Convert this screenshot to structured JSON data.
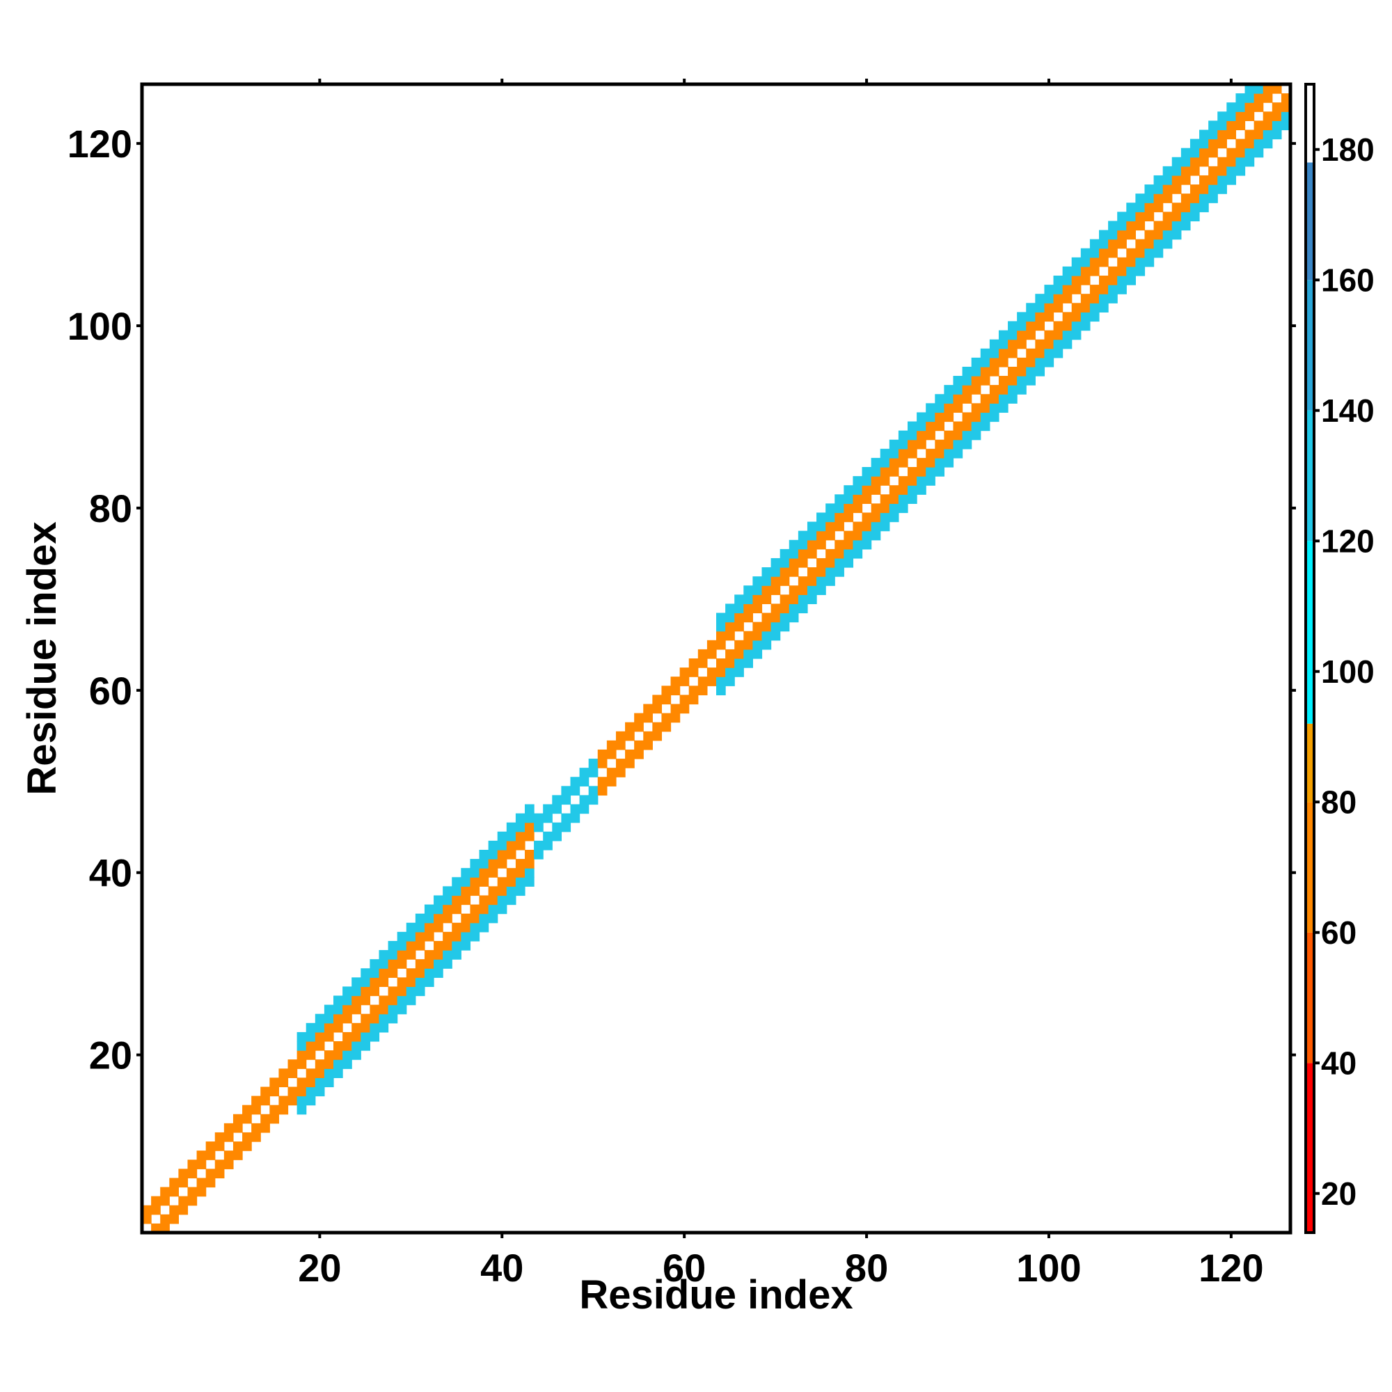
{
  "chart_data": {
    "type": "heatmap",
    "title": "",
    "xlabel": "Residue index",
    "ylabel": "Residue index",
    "xlim": [
      1,
      126
    ],
    "ylim": [
      1,
      126
    ],
    "x_ticks": [
      20,
      40,
      60,
      80,
      100,
      120
    ],
    "y_ticks": [
      20,
      40,
      60,
      80,
      100,
      120
    ],
    "grid": false,
    "diagonal_value": 0,
    "colorbar": {
      "range": [
        14,
        190
      ],
      "ticks": [
        20,
        40,
        60,
        80,
        100,
        120,
        140,
        160,
        180
      ],
      "bands": [
        {
          "from": 14,
          "to": 40,
          "color": "#ff0000"
        },
        {
          "from": 40,
          "to": 60,
          "color": "#ff5a00"
        },
        {
          "from": 60,
          "to": 80,
          "color": "#ff8800"
        },
        {
          "from": 80,
          "to": 92,
          "color": "#f5a000"
        },
        {
          "from": 92,
          "to": 120,
          "color": "#00f0ff"
        },
        {
          "from": 120,
          "to": 140,
          "color": "#22c8e8"
        },
        {
          "from": 140,
          "to": 160,
          "color": "#2aa6d8"
        },
        {
          "from": 160,
          "to": 178,
          "color": "#3a86c6"
        },
        {
          "from": 178,
          "to": 190,
          "color": "#ffffff"
        }
      ]
    },
    "segments": [
      {
        "from": 1,
        "to": 17,
        "halfwidth": 2,
        "values": [
          30,
          60,
          100
        ]
      },
      {
        "from": 17,
        "to": 43,
        "halfwidth": 4,
        "values": [
          35,
          65,
          100,
          130
        ]
      },
      {
        "from": 43,
        "to": 50,
        "halfwidth": 2,
        "values": [
          40,
          130
        ]
      },
      {
        "from": 50,
        "to": 63,
        "halfwidth": 2,
        "values": [
          35,
          60
        ]
      },
      {
        "from": 63,
        "to": 126,
        "halfwidth": 4,
        "values": [
          30,
          60,
          100,
          130
        ]
      }
    ]
  }
}
